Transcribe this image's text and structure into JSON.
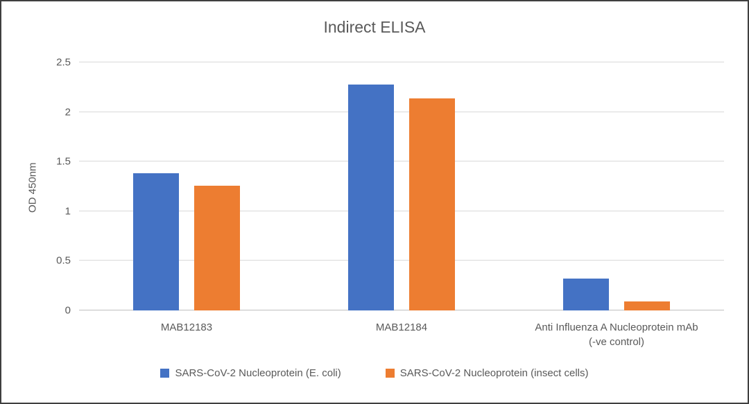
{
  "chart_data": {
    "type": "bar",
    "title": "Indirect ELISA",
    "xlabel": "",
    "ylabel": "OD 450nm",
    "ylim": [
      0,
      2.5
    ],
    "yticks": [
      0,
      0.5,
      1,
      1.5,
      2,
      2.5
    ],
    "grid": true,
    "legend_position": "bottom",
    "categories": [
      "MAB12183",
      "MAB12184",
      "Anti Influenza A Nucleoprotein mAb\n(-ve control)"
    ],
    "series": [
      {
        "name": "SARS-CoV-2 Nucleoprotein (E. coli)",
        "color": "#4472c4",
        "values": [
          1.38,
          2.28,
          0.32
        ]
      },
      {
        "name": "SARS-CoV-2 Nucleoprotein (insect cells)",
        "color": "#ed7d31",
        "values": [
          1.26,
          2.14,
          0.09
        ]
      }
    ]
  }
}
